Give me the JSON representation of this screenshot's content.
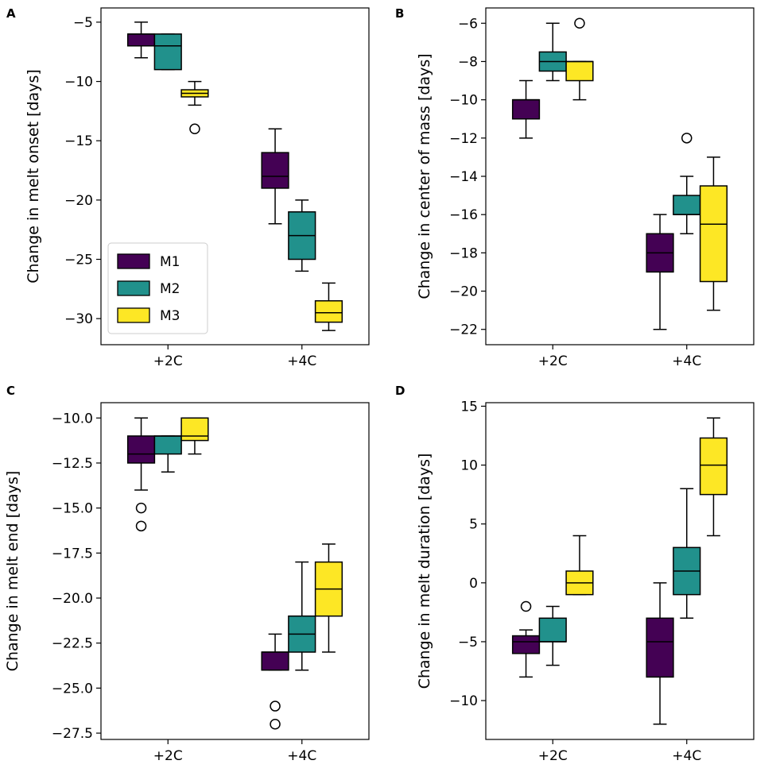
{
  "series_colors": {
    "M1": "#440154",
    "M2": "#21918c",
    "M3": "#fde725"
  },
  "legend": [
    "M1",
    "M2",
    "M3"
  ],
  "chart_data": [
    {
      "panel": "A",
      "type": "boxplot",
      "ylabel": "Change in melt onset [days]",
      "categories": [
        "+2C",
        "+4C"
      ],
      "ylim": [
        -32.2,
        -3.8
      ],
      "yticks": [
        -5,
        -10,
        -15,
        -20,
        -25,
        -30
      ],
      "legend_position": "lower-left",
      "boxes": [
        {
          "group": "+2C",
          "series": "M1",
          "whislo": -8,
          "q1": -7,
          "med": -6,
          "q3": -6,
          "whishi": -5,
          "fliers": []
        },
        {
          "group": "+2C",
          "series": "M2",
          "whislo": -9,
          "q1": -9,
          "med": -7,
          "q3": -6,
          "whishi": -6,
          "fliers": []
        },
        {
          "group": "+2C",
          "series": "M3",
          "whislo": -12,
          "q1": -11.3,
          "med": -11,
          "q3": -10.7,
          "whishi": -10,
          "fliers": [
            -14
          ]
        },
        {
          "group": "+4C",
          "series": "M1",
          "whislo": -22,
          "q1": -19,
          "med": -18,
          "q3": -16,
          "whishi": -14,
          "fliers": []
        },
        {
          "group": "+4C",
          "series": "M2",
          "whislo": -26,
          "q1": -25,
          "med": -23,
          "q3": -21,
          "whishi": -20,
          "fliers": []
        },
        {
          "group": "+4C",
          "series": "M3",
          "whislo": -31,
          "q1": -30.3,
          "med": -29.5,
          "q3": -28.5,
          "whishi": -27,
          "fliers": []
        }
      ]
    },
    {
      "panel": "B",
      "type": "boxplot",
      "ylabel": "Change in center of mass [days]",
      "categories": [
        "+2C",
        "+4C"
      ],
      "ylim": [
        -22.8,
        -5.2
      ],
      "yticks": [
        -6,
        -8,
        -10,
        -12,
        -14,
        -16,
        -18,
        -20,
        -22
      ],
      "boxes": [
        {
          "group": "+2C",
          "series": "M1",
          "whislo": -12,
          "q1": -11,
          "med": -10,
          "q3": -10,
          "whishi": -9,
          "fliers": []
        },
        {
          "group": "+2C",
          "series": "M2",
          "whislo": -9,
          "q1": -8.5,
          "med": -8,
          "q3": -7.5,
          "whishi": -6,
          "fliers": []
        },
        {
          "group": "+2C",
          "series": "M3",
          "whislo": -10,
          "q1": -9,
          "med": -8,
          "q3": -8,
          "whishi": -8,
          "fliers": [
            -6
          ]
        },
        {
          "group": "+4C",
          "series": "M1",
          "whislo": -22,
          "q1": -19,
          "med": -18,
          "q3": -17,
          "whishi": -16,
          "fliers": []
        },
        {
          "group": "+4C",
          "series": "M2",
          "whislo": -17,
          "q1": -16,
          "med": -16,
          "q3": -15,
          "whishi": -14,
          "fliers": [
            -12
          ]
        },
        {
          "group": "+4C",
          "series": "M3",
          "whislo": -21,
          "q1": -19.5,
          "med": -16.5,
          "q3": -14.5,
          "whishi": -13,
          "fliers": []
        }
      ]
    },
    {
      "panel": "C",
      "type": "boxplot",
      "ylabel": "Change in melt end [days]",
      "categories": [
        "+2C",
        "+4C"
      ],
      "ylim": [
        -27.85,
        -9.15
      ],
      "yticks": [
        -10.0,
        -12.5,
        -15.0,
        -17.5,
        -20.0,
        -22.5,
        -25.0,
        -27.5
      ],
      "ytick_labels": [
        "−10.0",
        "−12.5",
        "−15.0",
        "−17.5",
        "−20.0",
        "−22.5",
        "−25.0",
        "−27.5"
      ],
      "boxes": [
        {
          "group": "+2C",
          "series": "M1",
          "whislo": -14,
          "q1": -12.5,
          "med": -12,
          "q3": -11,
          "whishi": -10,
          "fliers": [
            -15,
            -16
          ]
        },
        {
          "group": "+2C",
          "series": "M2",
          "whislo": -13,
          "q1": -12,
          "med": -11,
          "q3": -11,
          "whishi": -11,
          "fliers": []
        },
        {
          "group": "+2C",
          "series": "M3",
          "whislo": -12,
          "q1": -11.25,
          "med": -11,
          "q3": -10,
          "whishi": -10,
          "fliers": []
        },
        {
          "group": "+4C",
          "series": "M1",
          "whislo": -24,
          "q1": -24,
          "med": -23,
          "q3": -23,
          "whishi": -22,
          "fliers": [
            -26,
            -27
          ]
        },
        {
          "group": "+4C",
          "series": "M2",
          "whislo": -24,
          "q1": -23,
          "med": -22,
          "q3": -21,
          "whishi": -18,
          "fliers": []
        },
        {
          "group": "+4C",
          "series": "M3",
          "whislo": -23,
          "q1": -21,
          "med": -19.5,
          "q3": -18,
          "whishi": -17,
          "fliers": []
        }
      ]
    },
    {
      "panel": "D",
      "type": "boxplot",
      "ylabel": "Change in melt duration [days]",
      "categories": [
        "+2C",
        "+4C"
      ],
      "ylim": [
        -13.3,
        15.3
      ],
      "yticks": [
        15,
        10,
        5,
        0,
        -5,
        -10
      ],
      "boxes": [
        {
          "group": "+2C",
          "series": "M1",
          "whislo": -8,
          "q1": -6,
          "med": -5,
          "q3": -4.5,
          "whishi": -4,
          "fliers": [
            -2
          ]
        },
        {
          "group": "+2C",
          "series": "M2",
          "whislo": -7,
          "q1": -5,
          "med": -5,
          "q3": -3,
          "whishi": -2,
          "fliers": []
        },
        {
          "group": "+2C",
          "series": "M3",
          "whislo": -1,
          "q1": -1,
          "med": 0,
          "q3": 1,
          "whishi": 4,
          "fliers": []
        },
        {
          "group": "+4C",
          "series": "M1",
          "whislo": -12,
          "q1": -8,
          "med": -5,
          "q3": -3,
          "whishi": 0,
          "fliers": []
        },
        {
          "group": "+4C",
          "series": "M2",
          "whislo": -3,
          "q1": -1,
          "med": 1,
          "q3": 3,
          "whishi": 8,
          "fliers": []
        },
        {
          "group": "+4C",
          "series": "M3",
          "whislo": 4,
          "q1": 7.5,
          "med": 10,
          "q3": 12.3,
          "whishi": 14,
          "fliers": []
        }
      ]
    }
  ]
}
